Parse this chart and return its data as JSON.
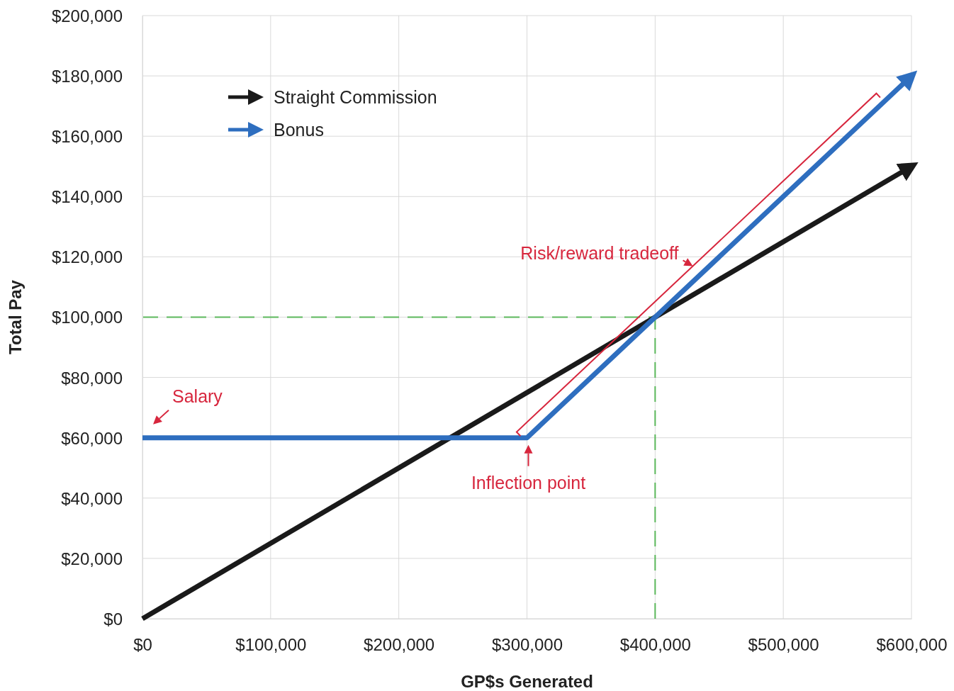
{
  "chart_data": {
    "type": "line",
    "xlabel": "GP$s Generated",
    "ylabel": "Total Pay",
    "series": [
      {
        "name": "Straight Commission",
        "color": "#1a1a1a",
        "x": [
          0,
          600000
        ],
        "values": [
          0,
          150000
        ]
      },
      {
        "name": "Bonus",
        "color": "#2e6ebf",
        "x": [
          0,
          300000,
          600000
        ],
        "values": [
          60000,
          60000,
          180000
        ]
      }
    ],
    "xlim": [
      0,
      600000
    ],
    "ylim": [
      0,
      200000
    ],
    "xticks": [
      {
        "value": 0,
        "label": "$0"
      },
      {
        "value": 100000,
        "label": "$100,000"
      },
      {
        "value": 200000,
        "label": "$200,000"
      },
      {
        "value": 300000,
        "label": "$300,000"
      },
      {
        "value": 400000,
        "label": "$400,000"
      },
      {
        "value": 500000,
        "label": "$500,000"
      },
      {
        "value": 600000,
        "label": "$600,000"
      }
    ],
    "yticks": [
      {
        "value": 0,
        "label": "$0"
      },
      {
        "value": 20000,
        "label": "$20,000"
      },
      {
        "value": 40000,
        "label": "$40,000"
      },
      {
        "value": 60000,
        "label": "$60,000"
      },
      {
        "value": 80000,
        "label": "$80,000"
      },
      {
        "value": 100000,
        "label": "$100,000"
      },
      {
        "value": 120000,
        "label": "$120,000"
      },
      {
        "value": 140000,
        "label": "$140,000"
      },
      {
        "value": 160000,
        "label": "$160,000"
      },
      {
        "value": 180000,
        "label": "$180,000"
      },
      {
        "value": 200000,
        "label": "$200,000"
      }
    ],
    "ref_lines": [
      {
        "axis": "y",
        "value": 100000,
        "color": "#5cb85c",
        "line_style": "dashed"
      },
      {
        "axis": "x",
        "value": 400000,
        "color": "#5cb85c",
        "line_style": "dashed"
      }
    ],
    "annotations": [
      {
        "text": "Salary",
        "x": 0,
        "y": 60000
      },
      {
        "text": "Inflection point",
        "x": 300000,
        "y": 60000
      },
      "Risk/reward tradeoff"
    ],
    "grid": true,
    "legend": "top left",
    "marker": "none",
    "line_style": "solid"
  }
}
